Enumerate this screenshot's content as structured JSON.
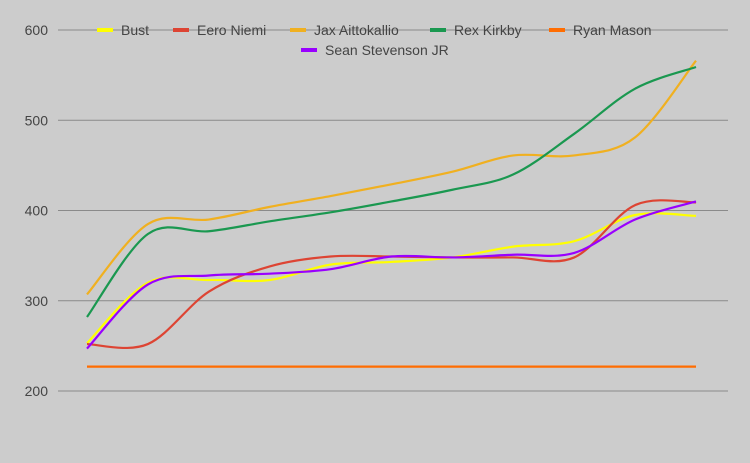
{
  "chart_data": {
    "type": "line",
    "title": "",
    "xlabel": "",
    "ylabel": "",
    "ylim": [
      180,
      630
    ],
    "yticks": [
      200,
      300,
      400,
      500,
      600
    ],
    "grid": true,
    "legend_position": "top",
    "x": [
      1,
      2,
      3,
      4,
      5,
      6,
      7,
      8,
      9,
      10,
      11
    ],
    "series": [
      {
        "name": "Bust",
        "color": "#ffff00",
        "values": [
          253,
          320,
          323,
          323,
          340,
          343,
          348,
          360,
          366,
          395,
          394
        ]
      },
      {
        "name": "Eero Niemi",
        "color": "#dd4433",
        "values": [
          252,
          252,
          310,
          338,
          349,
          349,
          348,
          348,
          348,
          406,
          409
        ]
      },
      {
        "name": "Jax Aittokallio",
        "color": "#f0b020",
        "values": [
          307,
          385,
          390,
          404,
          416,
          429,
          443,
          461,
          461,
          481,
          566
        ]
      },
      {
        "name": "Rex Kirkby",
        "color": "#1a9850",
        "values": [
          282,
          374,
          377,
          388,
          398,
          410,
          423,
          440,
          485,
          535,
          559
        ]
      },
      {
        "name": "Ryan Mason",
        "color": "#ff6d01",
        "values": [
          227,
          227,
          227,
          227,
          227,
          227,
          227,
          227,
          227,
          227,
          227
        ]
      },
      {
        "name": "Sean Stevenson JR",
        "color": "#9900ff",
        "values": [
          247,
          318,
          328,
          330,
          335,
          349,
          348,
          351,
          353,
          390,
          410
        ]
      }
    ]
  }
}
